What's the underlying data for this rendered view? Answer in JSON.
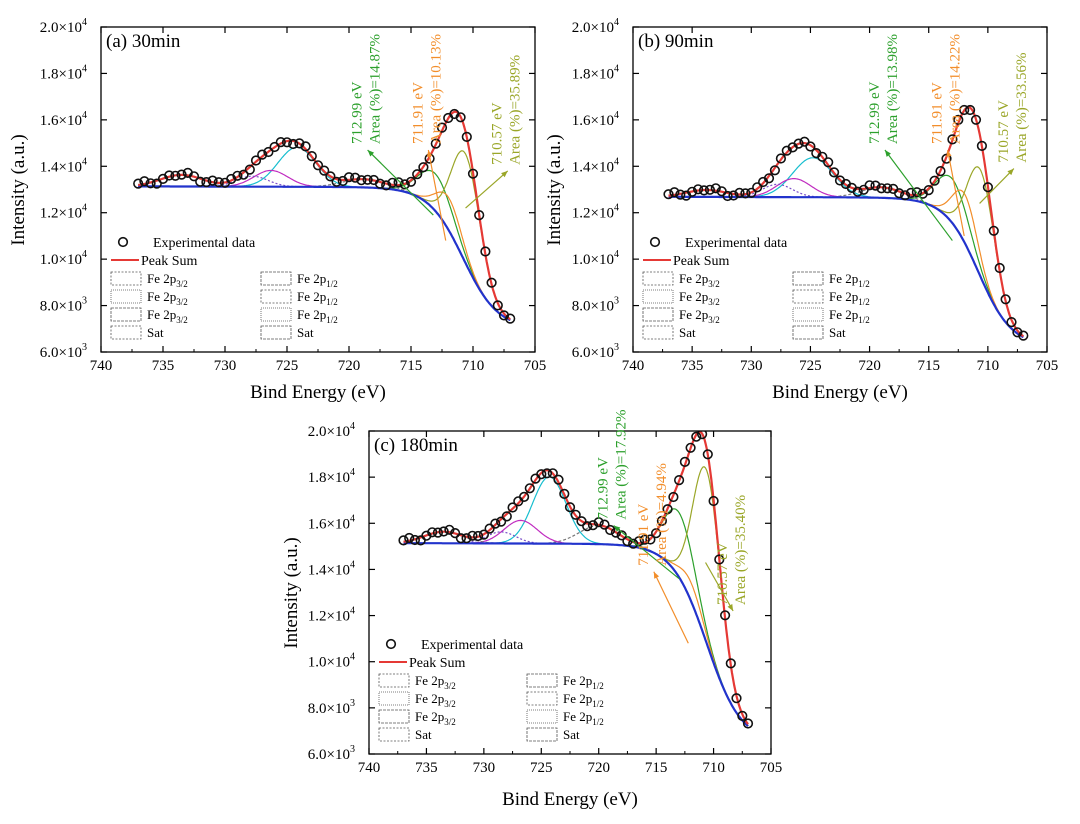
{
  "figure": {
    "panels": [
      {
        "label": "(a) 30min"
      },
      {
        "label": "(b) 90min"
      },
      {
        "label": "(c) 180min"
      }
    ]
  },
  "colors": {
    "experimental": "#111111",
    "peak_sum": "#e53935",
    "background": "#2233cc",
    "green": "#2ca02c",
    "orange": "#f28e2b",
    "olive": "#9aa628",
    "cyan": "#17becf",
    "magenta": "#c02cc0",
    "purple": "#7b4fc9",
    "gray": "#777777"
  },
  "chart_data": [
    {
      "type": "line",
      "title": "(a) 30min",
      "xlabel": "Bind Energy (eV)",
      "ylabel": "Intensity (a.u.)",
      "xlim": [
        740,
        705
      ],
      "ylim": [
        6000,
        20000
      ],
      "x_ticks": [
        740,
        735,
        730,
        725,
        720,
        715,
        710,
        705
      ],
      "x_tick_labels": [
        "740",
        "735",
        "730",
        "725",
        "720",
        "715",
        "710",
        "705"
      ],
      "y_ticks": [
        6000,
        8000,
        10000,
        12000,
        14000,
        16000,
        18000,
        20000
      ],
      "y_tick_labels": [
        [
          "6.0×10",
          "3"
        ],
        [
          "8.0×10",
          "3"
        ],
        [
          "1.0×10",
          "4"
        ],
        [
          "1.2×10",
          "4"
        ],
        [
          "1.4×10",
          "4"
        ],
        [
          "1.6×10",
          "4"
        ],
        [
          "1.8×10",
          "4"
        ],
        [
          "2.0×10",
          "4"
        ]
      ],
      "x_data_range": [
        737,
        707
      ],
      "background_params": {
        "low": 7000,
        "high": 13100,
        "mid": 710.8,
        "w": 1.4,
        "s": 0.14
      },
      "peaks": [
        {
          "name": "Fe 2p3/2 (712.99 eV)",
          "center": 712.99,
          "height": 1600,
          "fwhm": 3.2,
          "color": "green"
        },
        {
          "name": "Fe 2p3/2 (711.91 eV)",
          "center": 711.91,
          "height": 1400,
          "fwhm": 2.4,
          "color": "orange"
        },
        {
          "name": "Fe 2p3/2 (710.57 eV)",
          "center": 710.57,
          "height": 4700,
          "fwhm": 2.7,
          "color": "olive"
        },
        {
          "name": "Sat",
          "center": 718.8,
          "height": 350,
          "fwhm": 4.0,
          "color": "gray"
        },
        {
          "name": "Fe 2p1/2 (a)",
          "center": 724.2,
          "height": 1700,
          "fwhm": 3.6,
          "color": "cyan"
        },
        {
          "name": "Fe 2p1/2 (b)",
          "center": 726.3,
          "height": 700,
          "fwhm": 3.2,
          "color": "magenta"
        },
        {
          "name": "Fe 2p1/2 (c)",
          "center": 727.8,
          "height": 450,
          "fwhm": 3.0,
          "color": "purple"
        },
        {
          "name": "Sat",
          "center": 733.5,
          "height": 500,
          "fwhm": 4.0,
          "color": "gray"
        }
      ],
      "annotations": [
        {
          "energy": "712.99 eV",
          "area": "Area (%)=14.87%",
          "color": "green",
          "tip": [
            713.2,
            11900
          ],
          "tail": [
            718.5,
            14700
          ]
        },
        {
          "energy": "711.91 eV",
          "area": "Area (%)=10.13%",
          "color": "orange",
          "tip": [
            712.2,
            10800
          ],
          "tail": [
            713.6,
            14700
          ]
        },
        {
          "energy": "710.57 eV",
          "area": "Area (%)=35.89%",
          "color": "olive",
          "tip": [
            710.6,
            12200
          ],
          "tail": [
            707.2,
            13800
          ]
        }
      ],
      "legend": {
        "experimental": "Experimental data",
        "peak_sum": "Peak Sum",
        "items": [
          {
            "base": "Fe 2p",
            "sub": "3/2"
          },
          {
            "base": "Fe 2p",
            "sub": "1/2"
          },
          {
            "base": "Fe 2p",
            "sub": "3/2"
          },
          {
            "base": "Fe 2p",
            "sub": "1/2"
          },
          {
            "base": "Fe 2p",
            "sub": "3/2"
          },
          {
            "base": "Fe 2p",
            "sub": "1/2"
          },
          {
            "base": "Sat",
            "sub": ""
          },
          {
            "base": "Sat",
            "sub": ""
          }
        ]
      }
    },
    {
      "type": "line",
      "title": "(b) 90min",
      "xlabel": "Bind Energy (eV)",
      "ylabel": "Intensity (a.u.)",
      "xlim": [
        740,
        705
      ],
      "ylim": [
        6000,
        20000
      ],
      "x_ticks": [
        740,
        735,
        730,
        725,
        720,
        715,
        710,
        705
      ],
      "x_tick_labels": [
        "740",
        "735",
        "730",
        "725",
        "720",
        "715",
        "710",
        "705"
      ],
      "y_ticks": [
        6000,
        8000,
        10000,
        12000,
        14000,
        16000,
        18000,
        20000
      ],
      "y_tick_labels": [
        [
          "6.0×10",
          "3"
        ],
        [
          "8.0×10",
          "3"
        ],
        [
          "1.0×10",
          "4"
        ],
        [
          "1.2×10",
          "4"
        ],
        [
          "1.4×10",
          "4"
        ],
        [
          "1.6×10",
          "4"
        ],
        [
          "1.8×10",
          "4"
        ],
        [
          "2.0×10",
          "4"
        ]
      ],
      "x_data_range": [
        737,
        707
      ],
      "background_params": {
        "low": 6250,
        "high": 12650,
        "mid": 710.8,
        "w": 1.4,
        "s": 0.14
      },
      "peaks": [
        {
          "name": "Fe 2p3/2 (712.99 eV)",
          "center": 712.99,
          "height": 1900,
          "fwhm": 3.2,
          "color": "green"
        },
        {
          "name": "Fe 2p3/2 (711.91 eV)",
          "center": 711.91,
          "height": 2100,
          "fwhm": 2.4,
          "color": "orange"
        },
        {
          "name": "Fe 2p3/2 (710.57 eV)",
          "center": 710.57,
          "height": 4600,
          "fwhm": 2.7,
          "color": "olive"
        },
        {
          "name": "Sat",
          "center": 719.0,
          "height": 450,
          "fwhm": 4.0,
          "color": "gray"
        },
        {
          "name": "Fe 2p1/2 (a)",
          "center": 724.8,
          "height": 1700,
          "fwhm": 4.0,
          "color": "cyan"
        },
        {
          "name": "Fe 2p1/2 (b)",
          "center": 726.4,
          "height": 800,
          "fwhm": 3.4,
          "color": "magenta"
        },
        {
          "name": "Fe 2p1/2 (c)",
          "center": 727.8,
          "height": 550,
          "fwhm": 3.0,
          "color": "purple"
        },
        {
          "name": "Sat",
          "center": 733.8,
          "height": 300,
          "fwhm": 4.0,
          "color": "gray"
        }
      ],
      "annotations": [
        {
          "energy": "712.99 eV",
          "area": "Area (%)=13.98%",
          "color": "green",
          "tip": [
            713.0,
            10800
          ],
          "tail": [
            718.7,
            14700
          ]
        },
        {
          "energy": "711.91 eV",
          "area": "Area (%)=14.22%",
          "color": "orange",
          "tip": [
            712.0,
            11000
          ],
          "tail": [
            713.4,
            14700
          ]
        },
        {
          "energy": "710.57 eV",
          "area": "Area (%)=33.56%",
          "color": "olive",
          "tip": [
            710.7,
            12400
          ],
          "tail": [
            707.8,
            13900
          ]
        }
      ],
      "legend": {
        "experimental": "Experimental data",
        "peak_sum": "Peak Sum",
        "items": [
          {
            "base": "Fe 2p",
            "sub": "3/2"
          },
          {
            "base": "Fe 2p",
            "sub": "1/2"
          },
          {
            "base": "Fe 2p",
            "sub": "3/2"
          },
          {
            "base": "Fe 2p",
            "sub": "1/2"
          },
          {
            "base": "Fe 2p",
            "sub": "3/2"
          },
          {
            "base": "Fe 2p",
            "sub": "1/2"
          },
          {
            "base": "Sat",
            "sub": ""
          },
          {
            "base": "Sat",
            "sub": ""
          }
        ]
      }
    },
    {
      "type": "line",
      "title": "(c) 180min",
      "xlabel": "Bind Energy (eV)",
      "ylabel": "Intensity (a.u.)",
      "xlim": [
        740,
        705
      ],
      "ylim": [
        6000,
        20000
      ],
      "x_ticks": [
        740,
        735,
        730,
        725,
        720,
        715,
        710,
        705
      ],
      "x_tick_labels": [
        "740",
        "735",
        "730",
        "725",
        "720",
        "715",
        "710",
        "705"
      ],
      "y_ticks": [
        6000,
        8000,
        10000,
        12000,
        14000,
        16000,
        18000,
        20000
      ],
      "y_tick_labels": [
        [
          "6.0×10",
          "3"
        ],
        [
          "8.0×10",
          "3"
        ],
        [
          "1.0×10",
          "4"
        ],
        [
          "1.2×10",
          "4"
        ],
        [
          "1.4×10",
          "4"
        ],
        [
          "1.6×10",
          "4"
        ],
        [
          "1.8×10",
          "4"
        ],
        [
          "2.0×10",
          "4"
        ]
      ],
      "x_data_range": [
        737,
        707
      ],
      "background_params": {
        "low": 6500,
        "high": 15100,
        "mid": 710.6,
        "w": 1.5,
        "s": 0.16
      },
      "peaks": [
        {
          "name": "Fe 2p3/2 (712.99 eV)",
          "center": 712.99,
          "height": 2800,
          "fwhm": 3.2,
          "color": "green"
        },
        {
          "name": "Fe 2p3/2 (711.91 eV)",
          "center": 711.91,
          "height": 800,
          "fwhm": 2.4,
          "color": "orange"
        },
        {
          "name": "Fe 2p3/2 (710.57 eV)",
          "center": 710.57,
          "height": 7500,
          "fwhm": 2.8,
          "color": "olive"
        },
        {
          "name": "Sat",
          "center": 720.0,
          "height": 800,
          "fwhm": 4.0,
          "color": "gray"
        },
        {
          "name": "Fe 2p1/2 (a)",
          "center": 724.3,
          "height": 2900,
          "fwhm": 3.4,
          "color": "cyan"
        },
        {
          "name": "Fe 2p1/2 (b)",
          "center": 726.8,
          "height": 1000,
          "fwhm": 3.4,
          "color": "magenta"
        },
        {
          "name": "Fe 2p1/2 (c)",
          "center": 728.5,
          "height": 500,
          "fwhm": 3.0,
          "color": "purple"
        },
        {
          "name": "Sat",
          "center": 733.5,
          "height": 500,
          "fwhm": 4.0,
          "color": "gray"
        }
      ],
      "annotations": [
        {
          "energy": "712.99 eV",
          "area": "Area (%)=17.92%",
          "color": "green",
          "tip": [
            713.0,
            13600
          ],
          "tail": [
            718.7,
            15900
          ]
        },
        {
          "energy": "711.91 eV",
          "area": "Area (%)=4.94%",
          "color": "orange",
          "tip": [
            712.2,
            10800
          ],
          "tail": [
            715.2,
            13900
          ]
        },
        {
          "energy": "710.57 eV",
          "area": "Area (%)=35.40%",
          "color": "olive",
          "tip": [
            710.7,
            14300
          ],
          "tail": [
            708.3,
            12200
          ]
        }
      ],
      "legend": {
        "experimental": "Experimental data",
        "peak_sum": "Peak Sum",
        "items": [
          {
            "base": "Fe 2p",
            "sub": "3/2"
          },
          {
            "base": "Fe 2p",
            "sub": "1/2"
          },
          {
            "base": "Fe 2p",
            "sub": "3/2"
          },
          {
            "base": "Fe 2p",
            "sub": "1/2"
          },
          {
            "base": "Fe 2p",
            "sub": "3/2"
          },
          {
            "base": "Fe 2p",
            "sub": "1/2"
          },
          {
            "base": "Sat",
            "sub": ""
          },
          {
            "base": "Sat",
            "sub": ""
          }
        ]
      }
    }
  ]
}
